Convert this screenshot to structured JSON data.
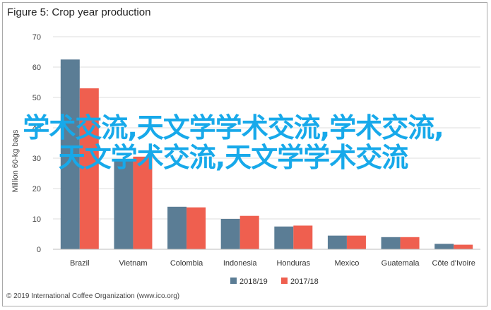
{
  "title": "Figure 5: Crop year production",
  "footer": "© 2019 International Coffee Organization (www.ico.org)",
  "overlay_text": "学术交流,天文学学术交流,学术交流,天文学术交流,天文学学术交流",
  "colors": {
    "series1": "#5b7d95",
    "series2": "#ef5f4f",
    "grid": "#dddddd",
    "overlay": "#17a9ea"
  },
  "chart_data": {
    "type": "bar",
    "categories": [
      "Brazil",
      "Vietnam",
      "Colombia",
      "Indonesia",
      "Honduras",
      "Mexico",
      "Guatemala",
      "Côte d'Ivoire"
    ],
    "series": [
      {
        "name": "2018/19",
        "values": [
          62.5,
          29.5,
          14.0,
          10.0,
          7.5,
          4.5,
          4.0,
          1.8
        ]
      },
      {
        "name": "2017/18",
        "values": [
          53.0,
          30.5,
          13.8,
          11.0,
          7.8,
          4.5,
          4.0,
          1.5
        ]
      }
    ],
    "ylabel": "Million 60-kg bags",
    "ylim": [
      0,
      70
    ],
    "yticks": [
      0,
      10,
      20,
      30,
      40,
      50,
      60,
      70
    ],
    "grid": true,
    "legend": "bottom"
  }
}
